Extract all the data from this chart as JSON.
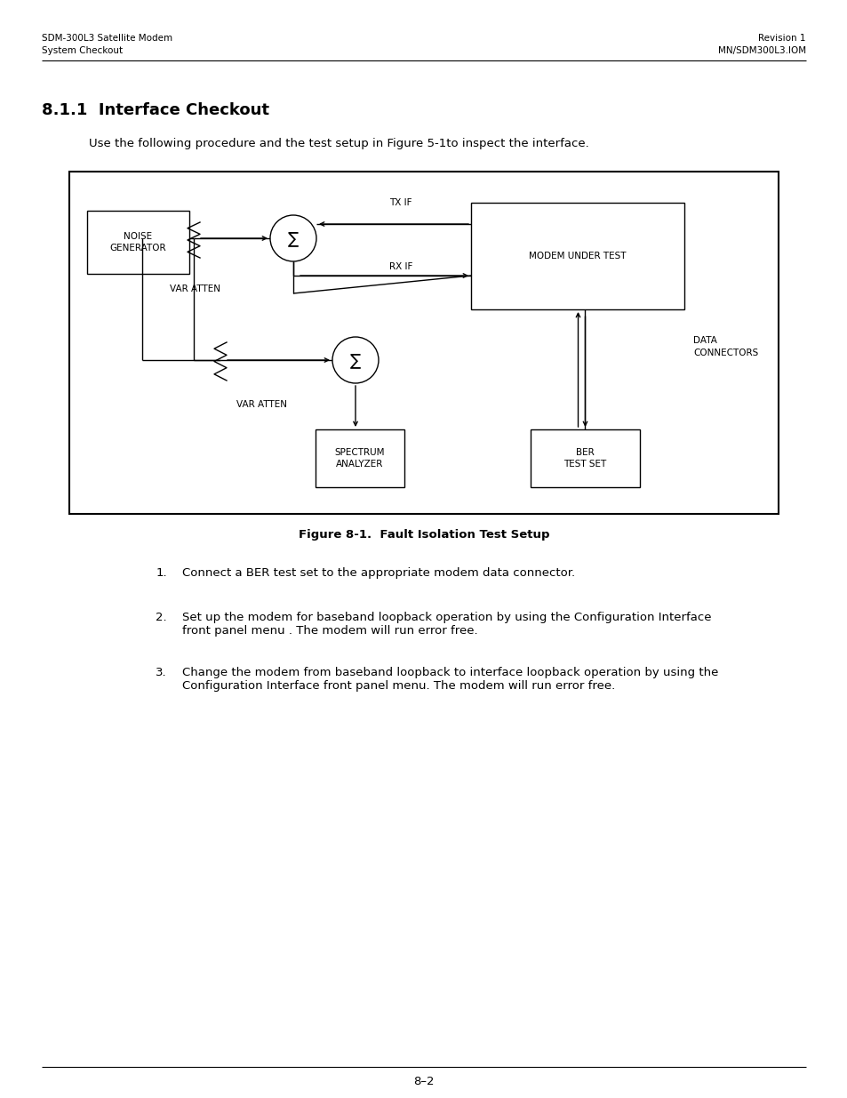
{
  "header_left_line1": "SDM-300L3 Satellite Modem",
  "header_left_line2": "System Checkout",
  "header_right_line1": "Revision 1",
  "header_right_line2": "MN/SDM300L3.IOM",
  "section_title": "8.1.1  Interface Checkout",
  "intro_text": "Use the following procedure and the test setup in Figure 5-1to inspect the interface.",
  "figure_caption": "Figure 8-1.  Fault Isolation Test Setup",
  "list_item1": "Connect a BER test set to the appropriate modem data connector.",
  "list_item2a": "Set up the modem for baseband loopback operation by using the Configuration Interface",
  "list_item2b": "front panel menu . The modem will run error free.",
  "list_item3a": "Change the modem from baseband loopback to interface loopback operation by using the",
  "list_item3b": "Configuration Interface front panel menu. The modem will run error free.",
  "footer_text": "8–2",
  "bg_color": "#ffffff",
  "text_color": "#000000"
}
